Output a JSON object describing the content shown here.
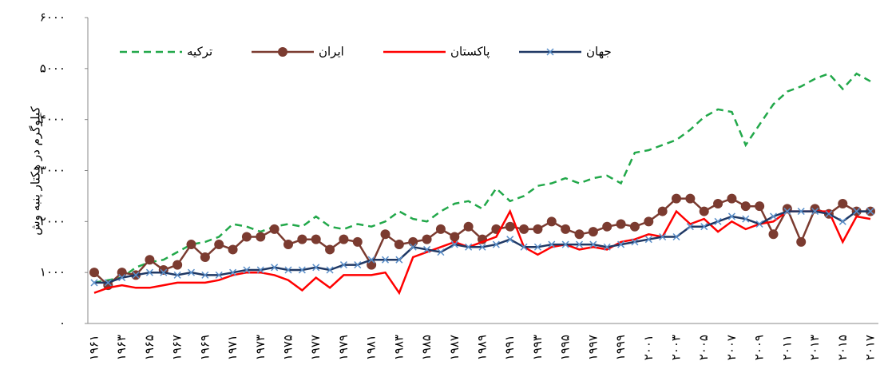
{
  "chart_data": {
    "type": "line",
    "y_label": "کیلوگرم در هکتار پنبه وش",
    "categories": [
      "۱۹۶۱",
      null,
      "۱۹۶۳",
      null,
      "۱۹۶۵",
      null,
      "۱۹۶۷",
      null,
      "۱۹۶۹",
      null,
      "۱۹۷۱",
      null,
      "۱۹۷۳",
      null,
      "۱۹۷۵",
      null,
      "۱۹۷۷",
      null,
      "۱۹۷۹",
      null,
      "۱۹۸۱",
      null,
      "۱۹۸۳",
      null,
      "۱۹۸۵",
      null,
      "۱۹۸۷",
      null,
      "۱۹۸۹",
      null,
      "۱۹۹۱",
      null,
      "۱۹۹۳",
      null,
      "۱۹۹۵",
      null,
      "۱۹۹۷",
      null,
      "۱۹۹۹",
      null,
      "۲۰۰۱",
      null,
      "۲۰۰۳",
      null,
      "۲۰۰۵",
      null,
      "۲۰۰۷",
      null,
      "۲۰۰۹",
      null,
      "۲۰۱۱",
      null,
      "۲۰۱۳",
      null,
      "۲۰۱۵",
      null,
      "۲۰۱۷"
    ],
    "series": [
      {
        "name": "ترکیه",
        "color": "#22a84a",
        "dash": true,
        "marker": "none",
        "values": [
          800,
          850,
          900,
          1100,
          1200,
          1250,
          1400,
          1550,
          1600,
          1700,
          1950,
          1900,
          1800,
          1900,
          1950,
          1900,
          2100,
          1900,
          1850,
          1950,
          1900,
          2000,
          2200,
          2050,
          2000,
          2200,
          2350,
          2400,
          2250,
          2650,
          2400,
          2500,
          2700,
          2750,
          2850,
          2750,
          2850,
          2900,
          2750,
          3350,
          3400,
          3500,
          3600,
          3800,
          4050,
          4200,
          4150,
          3500,
          3900,
          4300,
          4550,
          4650,
          4800,
          4900,
          4600,
          4900,
          4750
        ]
      },
      {
        "name": "ایران",
        "color": "#7b3b30",
        "dash": false,
        "marker": "circle",
        "values": [
          1000,
          750,
          1000,
          950,
          1250,
          1050,
          1150,
          1550,
          1300,
          1550,
          1450,
          1700,
          1700,
          1850,
          1550,
          1650,
          1650,
          1450,
          1650,
          1600,
          1150,
          1750,
          1550,
          1600,
          1650,
          1850,
          1700,
          1900,
          1650,
          1850,
          1900,
          1850,
          1850,
          2000,
          1850,
          1750,
          1800,
          1900,
          1950,
          1900,
          2000,
          2200,
          2450,
          2450,
          2200,
          2350,
          2450,
          2300,
          2300,
          1750,
          2250,
          1600,
          2250,
          2150,
          2350,
          2200,
          2200
        ]
      },
      {
        "name": "پاکستان",
        "color": "#ff0000",
        "dash": false,
        "marker": "none",
        "values": [
          600,
          700,
          750,
          700,
          700,
          750,
          800,
          800,
          800,
          850,
          950,
          1000,
          1000,
          950,
          850,
          650,
          900,
          700,
          950,
          950,
          950,
          1000,
          600,
          1300,
          1400,
          1500,
          1600,
          1500,
          1600,
          1700,
          2200,
          1500,
          1350,
          1500,
          1550,
          1450,
          1500,
          1450,
          1600,
          1650,
          1750,
          1700,
          2200,
          1950,
          2050,
          1800,
          2000,
          1850,
          1950,
          2000,
          2200,
          2200,
          2200,
          2200,
          1600,
          2100,
          2050
        ]
      },
      {
        "name": "جهان",
        "color": "#1f3864",
        "dash": false,
        "marker": "x",
        "values": [
          800,
          800,
          900,
          950,
          1000,
          1000,
          950,
          1000,
          950,
          950,
          1000,
          1050,
          1050,
          1100,
          1050,
          1050,
          1100,
          1050,
          1150,
          1150,
          1250,
          1250,
          1250,
          1500,
          1450,
          1400,
          1550,
          1500,
          1500,
          1550,
          1650,
          1500,
          1500,
          1550,
          1550,
          1550,
          1550,
          1500,
          1550,
          1600,
          1650,
          1700,
          1700,
          1900,
          1900,
          2000,
          2100,
          2050,
          1950,
          2100,
          2200,
          2200,
          2200,
          2150,
          2000,
          2200,
          2200
        ]
      }
    ],
    "ylim": [
      0,
      6000
    ],
    "yticks": [
      {
        "value": 0,
        "label": "۰"
      },
      {
        "value": 1000,
        "label": "۱۰۰۰"
      },
      {
        "value": 2000,
        "label": "۲۰۰۰"
      },
      {
        "value": 3000,
        "label": "۳۰۰۰"
      },
      {
        "value": 4000,
        "label": "۴۰۰۰"
      },
      {
        "value": 5000,
        "label": "۵۰۰۰"
      },
      {
        "value": 6000,
        "label": "۶۰۰۰"
      }
    ],
    "legend": "top-left",
    "grid": false
  }
}
